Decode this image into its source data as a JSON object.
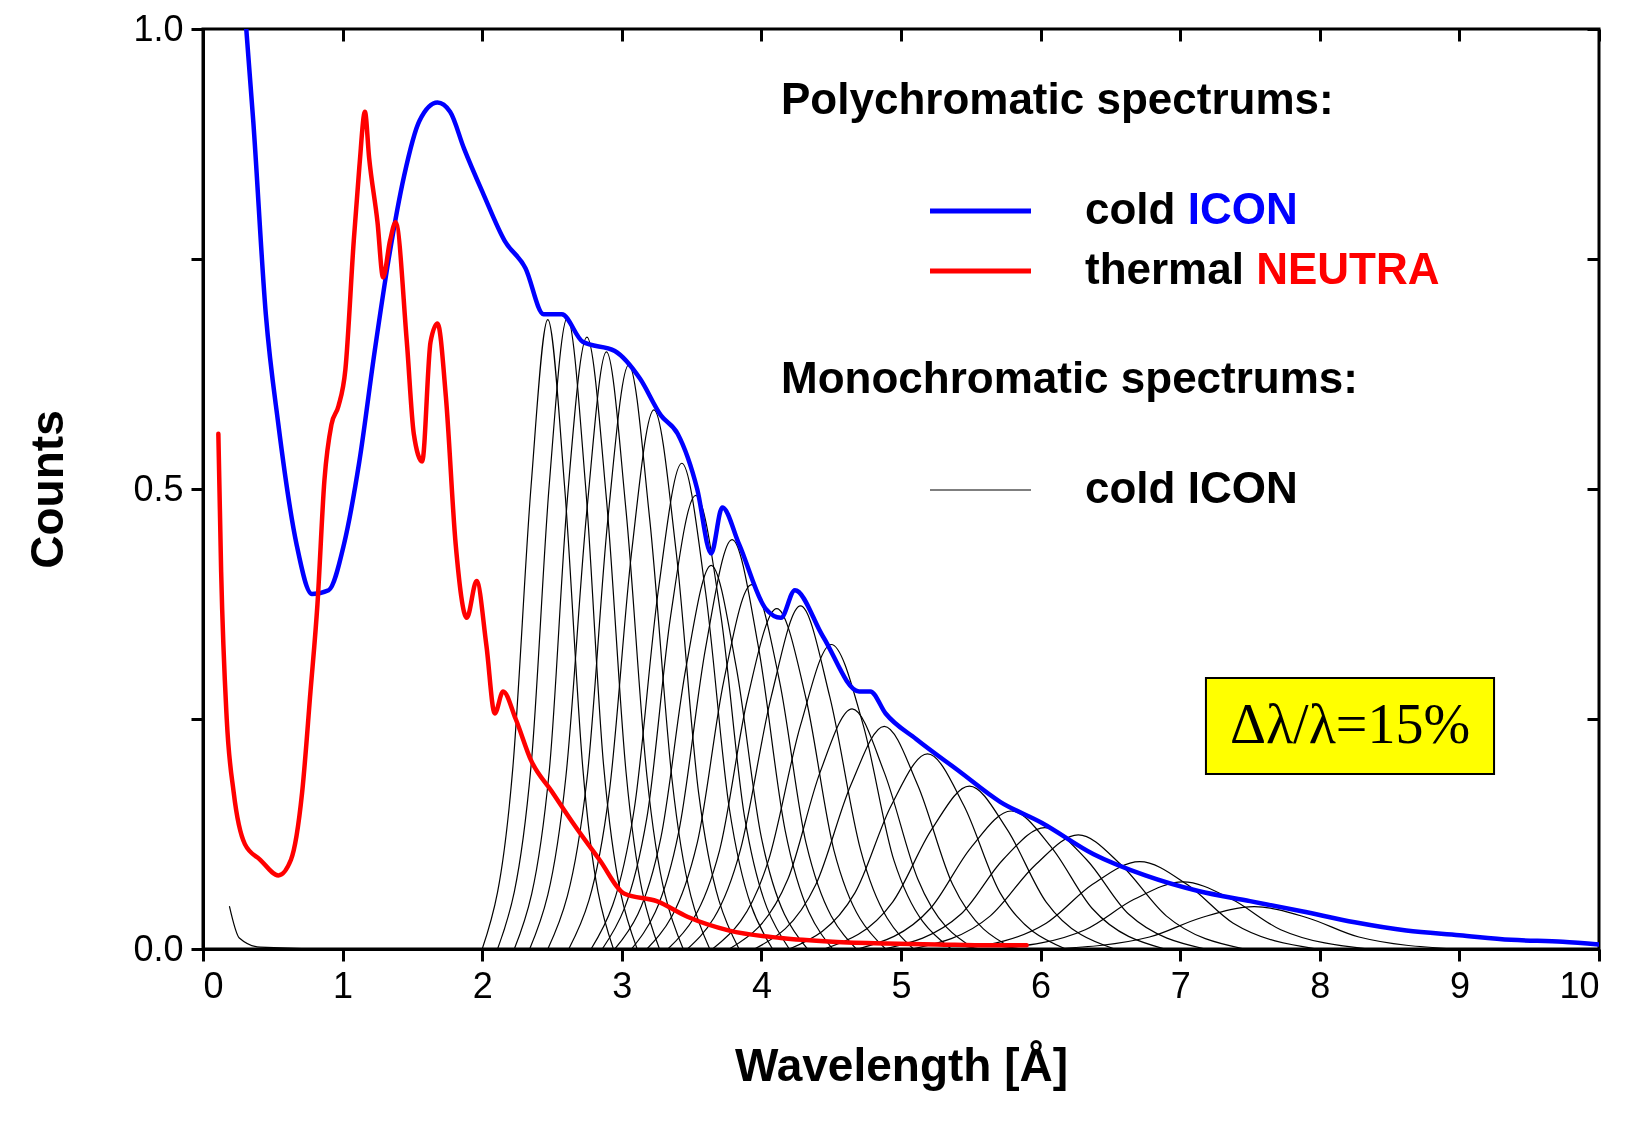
{
  "chart_data": {
    "type": "line",
    "xlabel": "Wavelength [Å]",
    "ylabel": "Counts",
    "xlim": [
      0,
      10
    ],
    "ylim": [
      0,
      1.0
    ],
    "xticks": [
      0,
      1,
      2,
      3,
      4,
      5,
      6,
      7,
      8,
      9,
      10
    ],
    "yticks": [
      {
        "value": 0,
        "label": "0.0"
      },
      {
        "value": 0.25,
        "label": null
      },
      {
        "value": 0.5,
        "label": "0.5"
      },
      {
        "value": 0.75,
        "label": null
      },
      {
        "value": 1.0,
        "label": "1.0"
      }
    ],
    "legend": "top right",
    "annotations": [
      "Polychromatic spectrums:",
      "Monochromatic spectrums:",
      "Δλ/λ=15%"
    ],
    "series": [
      {
        "name": "cold ICON",
        "color": "#0000ff",
        "x": [
          0.31,
          0.36,
          0.45,
          0.54,
          0.67,
          0.78,
          0.9,
          1.01,
          1.12,
          1.23,
          1.33,
          1.44,
          1.55,
          1.68,
          1.77,
          1.87,
          2.01,
          2.16,
          2.31,
          2.44,
          2.57,
          2.72,
          2.95,
          3.13,
          3.28,
          3.4,
          3.54,
          3.64,
          3.72,
          3.84,
          4.03,
          4.14,
          4.24,
          4.44,
          4.7,
          4.78,
          4.89,
          5.11,
          5.41,
          5.71,
          6.01,
          6.38,
          6.75,
          7.13,
          7.5,
          7.87,
          8.25,
          8.62,
          9.0,
          9.37,
          9.74,
          10
        ],
        "values": [
          1.0,
          0.9,
          0.69,
          0.57,
          0.44,
          0.386,
          0.39,
          0.44,
          0.53,
          0.65,
          0.75,
          0.84,
          0.9,
          0.92,
          0.91,
          0.87,
          0.82,
          0.77,
          0.74,
          0.69,
          0.69,
          0.66,
          0.65,
          0.62,
          0.58,
          0.56,
          0.5,
          0.43,
          0.48,
          0.44,
          0.37,
          0.36,
          0.39,
          0.34,
          0.28,
          0.28,
          0.256,
          0.228,
          0.194,
          0.16,
          0.137,
          0.103,
          0.08,
          0.063,
          0.052,
          0.041,
          0.029,
          0.02,
          0.015,
          0.01,
          0.008,
          0.005
        ]
      },
      {
        "name": "thermal NEUTRA",
        "color": "#ff0000",
        "x": [
          0.11,
          0.13,
          0.17,
          0.22,
          0.3,
          0.41,
          0.54,
          0.63,
          0.71,
          0.77,
          0.82,
          0.87,
          0.92,
          0.97,
          1.02,
          1.08,
          1.12,
          1.16,
          1.19,
          1.25,
          1.29,
          1.34,
          1.38,
          1.46,
          1.51,
          1.57,
          1.63,
          1.68,
          1.74,
          1.81,
          1.89,
          1.96,
          2.03,
          2.09,
          2.15,
          2.24,
          2.35,
          2.5,
          2.65,
          2.84,
          3.02,
          3.25,
          3.47,
          3.77,
          4.14,
          4.51,
          4.89,
          5.26,
          5.63,
          5.9
        ],
        "values": [
          0.56,
          0.41,
          0.25,
          0.17,
          0.114,
          0.097,
          0.08,
          0.097,
          0.17,
          0.28,
          0.375,
          0.51,
          0.57,
          0.59,
          0.63,
          0.77,
          0.85,
          0.91,
          0.86,
          0.79,
          0.73,
          0.77,
          0.79,
          0.66,
          0.56,
          0.53,
          0.66,
          0.68,
          0.6,
          0.44,
          0.36,
          0.4,
          0.33,
          0.256,
          0.28,
          0.25,
          0.205,
          0.171,
          0.137,
          0.097,
          0.06,
          0.052,
          0.035,
          0.02,
          0.012,
          0.008,
          0.006,
          0.005,
          0.004,
          0.004
        ]
      },
      {
        "name": "cold ICON",
        "color": "#000000",
        "x": [
          2.0,
          2.22,
          2.35,
          2.47,
          2.59,
          2.72,
          2.94
        ],
        "values": [
          0,
          0.198,
          0.503,
          0.684,
          0.503,
          0.198,
          0
        ]
      },
      {
        "color": "#000000",
        "x": [
          2.11,
          2.35,
          2.48,
          2.61,
          2.74,
          2.87,
          3.11
        ],
        "values": [
          0,
          0.199,
          0.504,
          0.686,
          0.504,
          0.199,
          0
        ]
      },
      {
        "color": "#000000",
        "x": [
          2.23,
          2.48,
          2.61,
          2.75,
          2.89,
          3.03,
          3.27
        ],
        "values": [
          0,
          0.193,
          0.489,
          0.665,
          0.489,
          0.193,
          0
        ]
      },
      {
        "color": "#000000",
        "x": [
          2.34,
          2.6,
          2.75,
          2.89,
          3.03,
          3.18,
          3.44
        ],
        "values": [
          0,
          0.188,
          0.477,
          0.649,
          0.477,
          0.188,
          0
        ]
      },
      {
        "color": "#000000",
        "x": [
          2.47,
          2.75,
          2.9,
          3.05,
          3.2,
          3.36,
          3.63
        ],
        "values": [
          0,
          0.184,
          0.467,
          0.635,
          0.467,
          0.184,
          0
        ]
      },
      {
        "color": "#000000",
        "x": [
          2.62,
          2.91,
          3.07,
          3.23,
          3.39,
          3.55,
          3.84
        ],
        "values": [
          0,
          0.17,
          0.431,
          0.586,
          0.431,
          0.17,
          0
        ]
      },
      {
        "color": "#000000",
        "x": [
          2.78,
          3.09,
          3.26,
          3.43,
          3.6,
          3.77,
          4.08
        ],
        "values": [
          0,
          0.153,
          0.388,
          0.528,
          0.388,
          0.153,
          0
        ]
      },
      {
        "color": "#000000",
        "x": [
          2.86,
          3.18,
          3.35,
          3.53,
          3.71,
          3.88,
          4.2
        ],
        "values": [
          0,
          0.143,
          0.362,
          0.493,
          0.362,
          0.143,
          0
        ]
      },
      {
        "color": "#000000",
        "x": [
          2.95,
          3.28,
          3.46,
          3.64,
          3.82,
          4.0,
          4.33
        ],
        "values": [
          0,
          0.121,
          0.306,
          0.417,
          0.306,
          0.121,
          0
        ]
      },
      {
        "color": "#000000",
        "x": [
          3.07,
          3.41,
          3.6,
          3.79,
          3.98,
          4.17,
          4.51
        ],
        "values": [
          0,
          0.129,
          0.327,
          0.445,
          0.327,
          0.129,
          0
        ]
      },
      {
        "color": "#000000",
        "x": [
          3.18,
          3.54,
          3.73,
          3.93,
          4.13,
          4.32,
          4.68
        ],
        "values": [
          0,
          0.115,
          0.291,
          0.396,
          0.291,
          0.115,
          0
        ]
      },
      {
        "color": "#000000",
        "x": [
          3.33,
          3.7,
          3.9,
          4.11,
          4.32,
          4.52,
          4.89
        ],
        "values": [
          0,
          0.107,
          0.272,
          0.37,
          0.272,
          0.107,
          0
        ]
      },
      {
        "color": "#000000",
        "x": [
          3.47,
          3.85,
          4.07,
          4.28,
          4.49,
          4.71,
          5.09
        ],
        "values": [
          0,
          0.108,
          0.274,
          0.373,
          0.274,
          0.108,
          0
        ]
      },
      {
        "color": "#000000",
        "x": [
          3.65,
          4.05,
          4.28,
          4.5,
          4.73,
          4.95,
          5.36
        ],
        "values": [
          0,
          0.096,
          0.243,
          0.331,
          0.243,
          0.096,
          0
        ]
      },
      {
        "color": "#000000",
        "x": [
          3.77,
          4.19,
          4.42,
          4.65,
          4.88,
          5.12,
          5.53
        ],
        "values": [
          0,
          0.076,
          0.192,
          0.261,
          0.192,
          0.076,
          0
        ]
      },
      {
        "color": "#000000",
        "x": [
          3.95,
          4.39,
          4.64,
          4.88,
          5.12,
          5.37,
          5.81
        ],
        "values": [
          0,
          0.07,
          0.178,
          0.242,
          0.178,
          0.07,
          0
        ]
      },
      {
        "color": "#000000",
        "x": [
          4.2,
          4.67,
          4.93,
          5.19,
          5.45,
          5.71,
          6.18
        ],
        "values": [
          0,
          0.061,
          0.156,
          0.212,
          0.156,
          0.061,
          0
        ]
      },
      {
        "color": "#000000",
        "x": [
          4.45,
          4.94,
          5.22,
          5.49,
          5.76,
          6.04,
          6.53
        ],
        "values": [
          0,
          0.051,
          0.13,
          0.177,
          0.13,
          0.051,
          0
        ]
      },
      {
        "color": "#000000",
        "x": [
          4.69,
          5.21,
          5.5,
          5.79,
          6.08,
          6.37,
          6.89
        ],
        "values": [
          0,
          0.044,
          0.11,
          0.15,
          0.11,
          0.044,
          0
        ]
      },
      {
        "color": "#000000",
        "x": [
          4.88,
          5.43,
          5.73,
          6.03,
          6.33,
          6.63,
          7.18
        ],
        "values": [
          0,
          0.038,
          0.097,
          0.132,
          0.097,
          0.038,
          0
        ]
      },
      {
        "color": "#000000",
        "x": [
          5.08,
          5.64,
          5.96,
          6.27,
          6.58,
          6.9,
          7.46
        ],
        "values": [
          0,
          0.036,
          0.091,
          0.124,
          0.091,
          0.036,
          0
        ]
      },
      {
        "color": "#000000",
        "x": [
          5.44,
          6.04,
          6.37,
          6.71,
          7.05,
          7.38,
          7.98
        ],
        "values": [
          0,
          0.028,
          0.07,
          0.095,
          0.07,
          0.028,
          0
        ]
      },
      {
        "color": "#000000",
        "x": [
          5.69,
          6.32,
          6.67,
          7.02,
          7.37,
          7.72,
          8.35
        ],
        "values": [
          0,
          0.021,
          0.054,
          0.073,
          0.054,
          0.021,
          0
        ]
      },
      {
        "color": "#000000",
        "x": [
          6.1,
          6.78,
          7.15,
          7.53,
          7.91,
          8.28,
          8.96
        ],
        "values": [
          0,
          0.013,
          0.034,
          0.046,
          0.034,
          0.013,
          0
        ]
      },
      {
        "color": "#000000",
        "x": [
          0.19,
          0.26,
          0.41,
          1.0,
          2.0
        ],
        "values": [
          0.046,
          0.012,
          0.002,
          0,
          0
        ]
      }
    ]
  }
}
